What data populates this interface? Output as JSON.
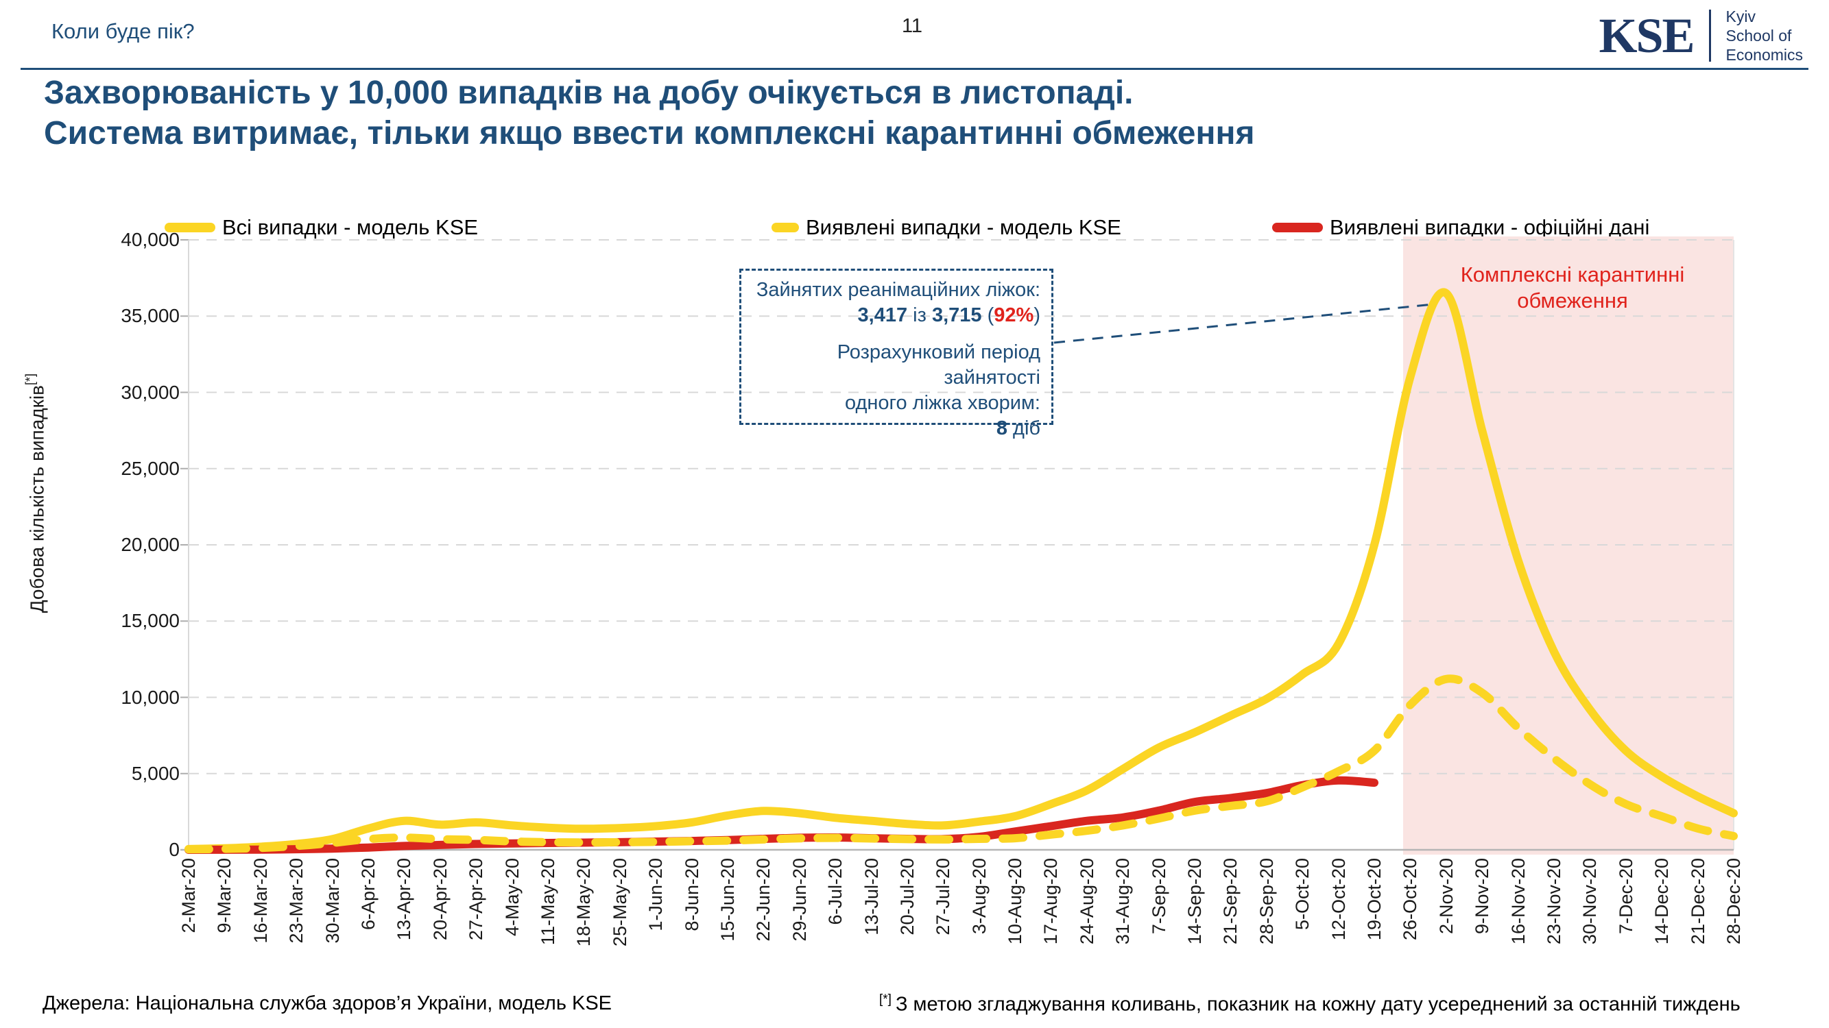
{
  "header": {
    "kicker": "Коли буде пік?",
    "page_number": "11",
    "logo": {
      "acronym": "KSE",
      "org_lines": [
        "Kyiv",
        "School of",
        "Economics"
      ]
    }
  },
  "title": {
    "line1": "Захворюваність у 10,000 випадків на добу очікується в листопаді.",
    "line2": "Система витримає, тільки якщо ввести комплексні карантинні обмеження"
  },
  "colors": {
    "navy": "#1F4E79",
    "logo_navy": "#1F3864",
    "accent_red": "#E0231C",
    "series_yellow": "#FBD524",
    "series_red": "#D9261F",
    "shade_pink": "#FAE4E2",
    "grid": "#D8D8D8",
    "axis": "#B5B5B5"
  },
  "chart_data": {
    "type": "line",
    "title": "",
    "xlabel": "",
    "ylabel": "Добова кількість випадків",
    "ylabel_footnote": "[*]",
    "ylim": [
      0,
      40000
    ],
    "ytick_step": 5000,
    "grid": "horizontal-dashed",
    "legend_position": "top",
    "categories": [
      "2-Mar-20",
      "9-Mar-20",
      "16-Mar-20",
      "23-Mar-20",
      "30-Mar-20",
      "6-Apr-20",
      "13-Apr-20",
      "20-Apr-20",
      "27-Apr-20",
      "4-May-20",
      "11-May-20",
      "18-May-20",
      "25-May-20",
      "1-Jun-20",
      "8-Jun-20",
      "15-Jun-20",
      "22-Jun-20",
      "29-Jun-20",
      "6-Jul-20",
      "13-Jul-20",
      "20-Jul-20",
      "27-Jul-20",
      "3-Aug-20",
      "10-Aug-20",
      "17-Aug-20",
      "24-Aug-20",
      "31-Aug-20",
      "7-Sep-20",
      "14-Sep-20",
      "21-Sep-20",
      "28-Sep-20",
      "5-Oct-20",
      "12-Oct-20",
      "19-Oct-20",
      "26-Oct-20",
      "2-Nov-20",
      "9-Nov-20",
      "16-Nov-20",
      "23-Nov-20",
      "30-Nov-20",
      "7-Dec-20",
      "14-Dec-20",
      "21-Dec-20",
      "28-Dec-20"
    ],
    "series": [
      {
        "name": "Всі випадки - модель KSE",
        "style": "solid",
        "color": "#FBD524",
        "values": [
          50,
          100,
          200,
          380,
          700,
          1400,
          1900,
          1650,
          1800,
          1600,
          1450,
          1380,
          1430,
          1550,
          1800,
          2250,
          2550,
          2400,
          2100,
          1900,
          1700,
          1600,
          1850,
          2200,
          3000,
          3900,
          5300,
          6700,
          7700,
          8800,
          9900,
          11500,
          13500,
          20000,
          31000,
          36500,
          27500,
          19000,
          13000,
          9200,
          6500,
          4800,
          3500,
          2400
        ]
      },
      {
        "name": "Виявлені випадки - модель KSE",
        "style": "dashed",
        "color": "#FBD524",
        "values": [
          30,
          60,
          120,
          250,
          450,
          700,
          800,
          700,
          650,
          550,
          500,
          480,
          500,
          520,
          560,
          600,
          680,
          750,
          780,
          740,
          700,
          680,
          720,
          760,
          1000,
          1250,
          1600,
          2050,
          2570,
          2880,
          3180,
          4100,
          5150,
          6500,
          9500,
          11200,
          10300,
          8000,
          6000,
          4300,
          3000,
          2200,
          1400,
          900
        ]
      },
      {
        "name": "Виявлені випадки - офіційні дані",
        "style": "solid",
        "color": "#D9261F",
        "values": [
          0,
          5,
          15,
          40,
          80,
          150,
          250,
          320,
          380,
          420,
          450,
          470,
          500,
          540,
          580,
          640,
          720,
          790,
          810,
          760,
          720,
          700,
          850,
          1200,
          1550,
          1900,
          2120,
          2570,
          3140,
          3400,
          3720,
          4240,
          4550,
          4400,
          null,
          null,
          null,
          null,
          null,
          null,
          null,
          null,
          null,
          null
        ]
      }
    ],
    "shaded_region": {
      "label": "Комплексні карантинні обмеження",
      "start_index": 33.8,
      "end_index": 43,
      "color": "#FAE4E2",
      "label_color": "#E0231C"
    }
  },
  "callout": {
    "line1": "Зайнятих реанімаційних ліжок:",
    "line2_parts": [
      {
        "text": "3,417",
        "bold": true
      },
      {
        "text": " із ",
        "bold": false
      },
      {
        "text": "3,715",
        "bold": true
      },
      {
        "text": " (",
        "bold": false
      },
      {
        "text": "92%",
        "bold": true,
        "color": "#E0231C"
      },
      {
        "text": ")",
        "bold": false
      }
    ],
    "line3": "Розрахунковий період зайнятості",
    "line4": "одного ліжка хворим:",
    "line5_parts": [
      {
        "text": "8",
        "bold": true
      },
      {
        "text": " діб",
        "bold": false
      }
    ]
  },
  "footer": {
    "sources": "Джерела: Національна служба здоров’я України, модель KSE",
    "footnote_marker": "[*]",
    "footnote": "З метою згладжування коливань, показник на кожну дату усереднений за останній тиждень"
  }
}
